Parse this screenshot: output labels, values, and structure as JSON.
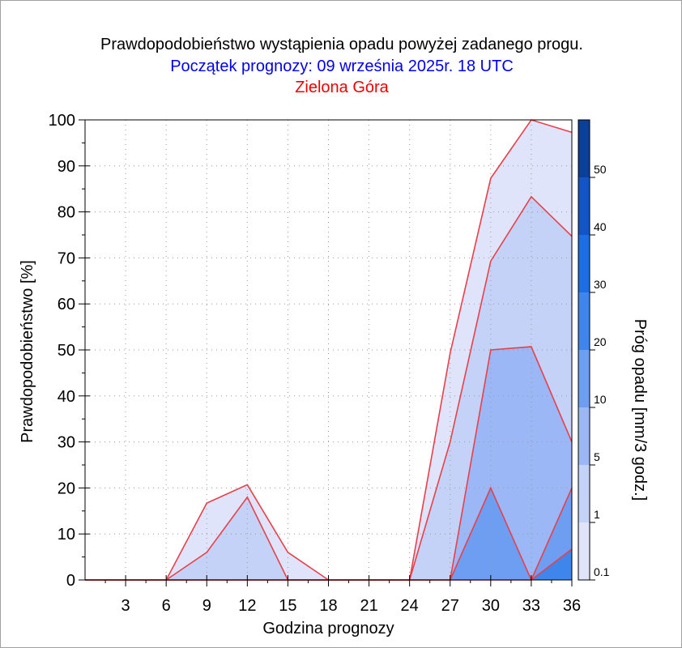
{
  "title": "Prawdopodobieństwo wystąpienia opadu powyżej zadanego progu.",
  "subtitle": "Początek prognozy: 09 września 2025r. 18 UTC",
  "location": "Zielona Góra",
  "colors": {
    "title": "#000000",
    "subtitle": "#0000ee",
    "location": "#ee0000",
    "outline": "#e8404a",
    "grid": "#9a9a9a",
    "levels": [
      "#dfe4fb",
      "#c4d2f7",
      "#9bb7f5",
      "#6d9ef2",
      "#3f86ec",
      "#1c6fe3",
      "#1256c6",
      "#0a3f9a"
    ]
  },
  "chart_data": {
    "type": "area",
    "xlabel": "Godzina prognozy",
    "ylabel": "Prawdopodobieństwo [%]",
    "x": [
      0,
      3,
      6,
      9,
      12,
      15,
      18,
      21,
      24,
      27,
      30,
      33,
      36
    ],
    "x_ticks": [
      3,
      6,
      9,
      12,
      15,
      18,
      21,
      24,
      27,
      30,
      33,
      36
    ],
    "xlim": [
      0,
      36
    ],
    "ylim": [
      0,
      100
    ],
    "y_ticks": [
      0,
      10,
      20,
      30,
      40,
      50,
      60,
      70,
      80,
      90,
      100
    ],
    "grid": true,
    "series": [
      {
        "name": "0.1",
        "values": [
          0,
          0,
          0,
          16.7,
          20.7,
          6.0,
          0,
          0,
          0,
          49.3,
          87.3,
          100,
          97.3
        ]
      },
      {
        "name": "1",
        "values": [
          0,
          0,
          0,
          6.0,
          18.0,
          0,
          0,
          0,
          0,
          30.0,
          69.3,
          83.3,
          74.7
        ]
      },
      {
        "name": "5",
        "values": [
          0,
          0,
          0,
          0,
          0,
          0,
          0,
          0,
          0,
          0,
          50.0,
          50.7,
          30.0
        ]
      },
      {
        "name": "10",
        "values": [
          0,
          0,
          0,
          0,
          0,
          0,
          0,
          0,
          0,
          0,
          20.0,
          0,
          20.0
        ]
      },
      {
        "name": "20",
        "values": [
          0,
          0,
          0,
          0,
          0,
          0,
          0,
          0,
          0,
          0,
          0,
          0,
          6.7
        ]
      }
    ],
    "colorbar": {
      "label": "Próg opadu [mm/3 godz.]",
      "ticks": [
        "0.1",
        "1",
        "5",
        "10",
        "20",
        "30",
        "40",
        "50"
      ]
    }
  }
}
